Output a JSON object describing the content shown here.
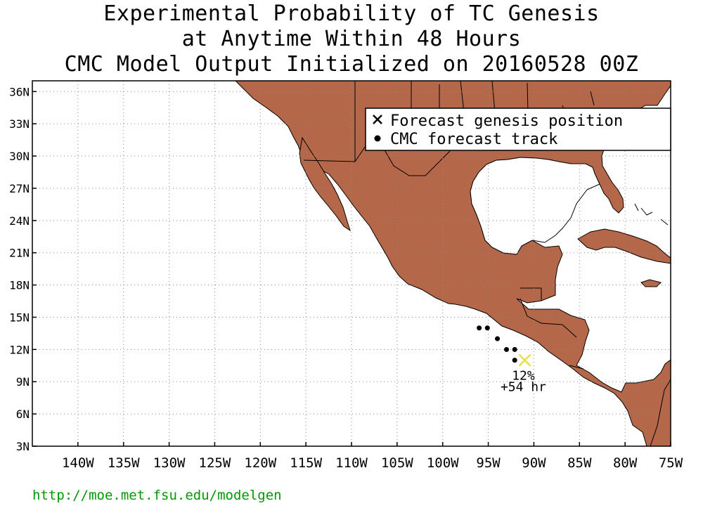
{
  "title": {
    "line1": "Experimental Probability of TC Genesis",
    "line2": "at Anytime Within 48 Hours",
    "line3": "CMC Model Output Initialized on 20160528 00Z"
  },
  "legend": {
    "genesis_label": "Forecast genesis position",
    "track_label": "CMC forecast track"
  },
  "map": {
    "lon_range": [
      -145,
      -75
    ],
    "lat_range": [
      3,
      37
    ],
    "lat_ticks": [
      {
        "value": 36,
        "label": "36N"
      },
      {
        "value": 33,
        "label": "33N"
      },
      {
        "value": 30,
        "label": "30N"
      },
      {
        "value": 27,
        "label": "27N"
      },
      {
        "value": 24,
        "label": "24N"
      },
      {
        "value": 21,
        "label": "21N"
      },
      {
        "value": 18,
        "label": "18N"
      },
      {
        "value": 15,
        "label": "15N"
      },
      {
        "value": 12,
        "label": "12N"
      },
      {
        "value": 9,
        "label": "9N"
      },
      {
        "value": 6,
        "label": "6N"
      },
      {
        "value": 3,
        "label": "3N"
      }
    ],
    "lon_ticks": [
      {
        "value": -140,
        "label": "140W"
      },
      {
        "value": -135,
        "label": "135W"
      },
      {
        "value": -130,
        "label": "130W"
      },
      {
        "value": -125,
        "label": "125W"
      },
      {
        "value": -120,
        "label": "120W"
      },
      {
        "value": -115,
        "label": "115W"
      },
      {
        "value": -110,
        "label": "110W"
      },
      {
        "value": -105,
        "label": "105W"
      },
      {
        "value": -100,
        "label": "100W"
      },
      {
        "value": -95,
        "label": "95W"
      },
      {
        "value": -90,
        "label": "90W"
      },
      {
        "value": -85,
        "label": "85W"
      },
      {
        "value": -80,
        "label": "80W"
      },
      {
        "value": -75,
        "label": "75W"
      }
    ],
    "grid": "dotted",
    "land_color": "#b5674a",
    "ocean_color": "#ffffff",
    "genesis_marker_color": "#e6e04a",
    "track_color": "#000000"
  },
  "forecast": {
    "track_points": [
      {
        "lon": -96.0,
        "lat": 14.0
      },
      {
        "lon": -95.1,
        "lat": 14.0
      },
      {
        "lon": -94.0,
        "lat": 13.0
      },
      {
        "lon": -93.0,
        "lat": 12.0
      },
      {
        "lon": -92.1,
        "lat": 12.0
      },
      {
        "lon": -92.1,
        "lat": 11.0
      }
    ],
    "genesis_position": {
      "lon": -91.0,
      "lat": 11.0
    },
    "probability_label": "12%",
    "lead_time_label": "+54 hr"
  },
  "source_url": "http://moe.met.fsu.edu/modelgen"
}
